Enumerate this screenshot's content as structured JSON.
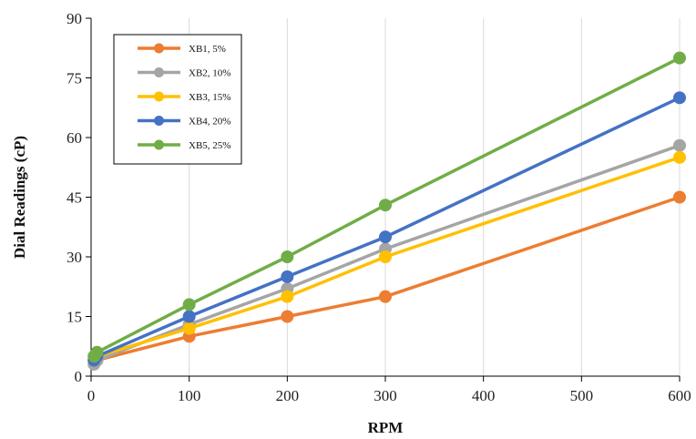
{
  "chart_data": {
    "type": "line",
    "title": "",
    "xlabel": "RPM",
    "ylabel": "Dial Readings (cP)",
    "x": [
      3,
      6,
      100,
      200,
      300,
      600
    ],
    "xlim": [
      0,
      600
    ],
    "ylim": [
      0,
      90
    ],
    "xticks": [
      0,
      100,
      200,
      300,
      400,
      500,
      600
    ],
    "yticks": [
      0,
      15,
      30,
      45,
      60,
      75,
      90
    ],
    "grid": "vertical",
    "legend_position": "top-left",
    "series": [
      {
        "name": "XB1, 5%",
        "color": "#ED7D31",
        "values": [
          4,
          4,
          10,
          15,
          20,
          45
        ]
      },
      {
        "name": "XB2, 10%",
        "color": "#A5A5A5",
        "values": [
          3,
          4,
          13,
          22,
          32,
          58
        ]
      },
      {
        "name": "XB3, 15%",
        "color": "#FFC000",
        "values": [
          4,
          5,
          12,
          20,
          30,
          55
        ]
      },
      {
        "name": "XB4, 20%",
        "color": "#4472C4",
        "values": [
          4,
          5,
          15,
          25,
          35,
          70
        ]
      },
      {
        "name": "XB5, 25%",
        "color": "#70AD47",
        "values": [
          5,
          6,
          18,
          30,
          43,
          80
        ]
      }
    ]
  }
}
